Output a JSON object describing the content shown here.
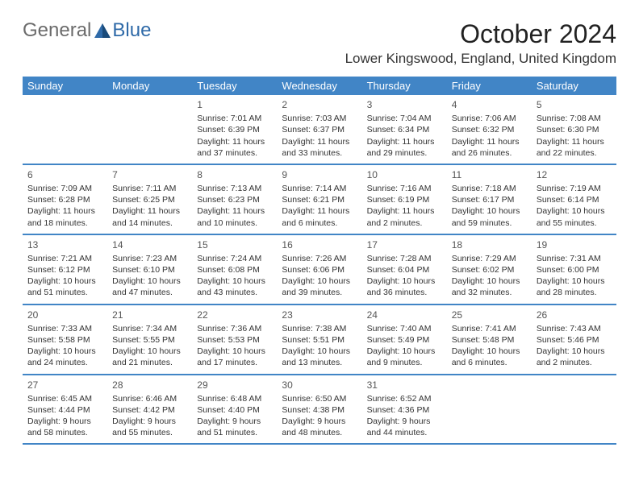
{
  "logo": {
    "text1": "General",
    "text2": "Blue"
  },
  "title": "October 2024",
  "location": "Lower Kingswood, England, United Kingdom",
  "colors": {
    "header_bg": "#4185c6",
    "header_text": "#ffffff",
    "border": "#4185c6",
    "body_text": "#333333",
    "logo_gray": "#6b6b6b",
    "logo_blue": "#2f6aa8"
  },
  "day_names": [
    "Sunday",
    "Monday",
    "Tuesday",
    "Wednesday",
    "Thursday",
    "Friday",
    "Saturday"
  ],
  "weeks": [
    [
      null,
      null,
      {
        "n": "1",
        "sr": "Sunrise: 7:01 AM",
        "ss": "Sunset: 6:39 PM",
        "dl": "Daylight: 11 hours and 37 minutes."
      },
      {
        "n": "2",
        "sr": "Sunrise: 7:03 AM",
        "ss": "Sunset: 6:37 PM",
        "dl": "Daylight: 11 hours and 33 minutes."
      },
      {
        "n": "3",
        "sr": "Sunrise: 7:04 AM",
        "ss": "Sunset: 6:34 PM",
        "dl": "Daylight: 11 hours and 29 minutes."
      },
      {
        "n": "4",
        "sr": "Sunrise: 7:06 AM",
        "ss": "Sunset: 6:32 PM",
        "dl": "Daylight: 11 hours and 26 minutes."
      },
      {
        "n": "5",
        "sr": "Sunrise: 7:08 AM",
        "ss": "Sunset: 6:30 PM",
        "dl": "Daylight: 11 hours and 22 minutes."
      }
    ],
    [
      {
        "n": "6",
        "sr": "Sunrise: 7:09 AM",
        "ss": "Sunset: 6:28 PM",
        "dl": "Daylight: 11 hours and 18 minutes."
      },
      {
        "n": "7",
        "sr": "Sunrise: 7:11 AM",
        "ss": "Sunset: 6:25 PM",
        "dl": "Daylight: 11 hours and 14 minutes."
      },
      {
        "n": "8",
        "sr": "Sunrise: 7:13 AM",
        "ss": "Sunset: 6:23 PM",
        "dl": "Daylight: 11 hours and 10 minutes."
      },
      {
        "n": "9",
        "sr": "Sunrise: 7:14 AM",
        "ss": "Sunset: 6:21 PM",
        "dl": "Daylight: 11 hours and 6 minutes."
      },
      {
        "n": "10",
        "sr": "Sunrise: 7:16 AM",
        "ss": "Sunset: 6:19 PM",
        "dl": "Daylight: 11 hours and 2 minutes."
      },
      {
        "n": "11",
        "sr": "Sunrise: 7:18 AM",
        "ss": "Sunset: 6:17 PM",
        "dl": "Daylight: 10 hours and 59 minutes."
      },
      {
        "n": "12",
        "sr": "Sunrise: 7:19 AM",
        "ss": "Sunset: 6:14 PM",
        "dl": "Daylight: 10 hours and 55 minutes."
      }
    ],
    [
      {
        "n": "13",
        "sr": "Sunrise: 7:21 AM",
        "ss": "Sunset: 6:12 PM",
        "dl": "Daylight: 10 hours and 51 minutes."
      },
      {
        "n": "14",
        "sr": "Sunrise: 7:23 AM",
        "ss": "Sunset: 6:10 PM",
        "dl": "Daylight: 10 hours and 47 minutes."
      },
      {
        "n": "15",
        "sr": "Sunrise: 7:24 AM",
        "ss": "Sunset: 6:08 PM",
        "dl": "Daylight: 10 hours and 43 minutes."
      },
      {
        "n": "16",
        "sr": "Sunrise: 7:26 AM",
        "ss": "Sunset: 6:06 PM",
        "dl": "Daylight: 10 hours and 39 minutes."
      },
      {
        "n": "17",
        "sr": "Sunrise: 7:28 AM",
        "ss": "Sunset: 6:04 PM",
        "dl": "Daylight: 10 hours and 36 minutes."
      },
      {
        "n": "18",
        "sr": "Sunrise: 7:29 AM",
        "ss": "Sunset: 6:02 PM",
        "dl": "Daylight: 10 hours and 32 minutes."
      },
      {
        "n": "19",
        "sr": "Sunrise: 7:31 AM",
        "ss": "Sunset: 6:00 PM",
        "dl": "Daylight: 10 hours and 28 minutes."
      }
    ],
    [
      {
        "n": "20",
        "sr": "Sunrise: 7:33 AM",
        "ss": "Sunset: 5:58 PM",
        "dl": "Daylight: 10 hours and 24 minutes."
      },
      {
        "n": "21",
        "sr": "Sunrise: 7:34 AM",
        "ss": "Sunset: 5:55 PM",
        "dl": "Daylight: 10 hours and 21 minutes."
      },
      {
        "n": "22",
        "sr": "Sunrise: 7:36 AM",
        "ss": "Sunset: 5:53 PM",
        "dl": "Daylight: 10 hours and 17 minutes."
      },
      {
        "n": "23",
        "sr": "Sunrise: 7:38 AM",
        "ss": "Sunset: 5:51 PM",
        "dl": "Daylight: 10 hours and 13 minutes."
      },
      {
        "n": "24",
        "sr": "Sunrise: 7:40 AM",
        "ss": "Sunset: 5:49 PM",
        "dl": "Daylight: 10 hours and 9 minutes."
      },
      {
        "n": "25",
        "sr": "Sunrise: 7:41 AM",
        "ss": "Sunset: 5:48 PM",
        "dl": "Daylight: 10 hours and 6 minutes."
      },
      {
        "n": "26",
        "sr": "Sunrise: 7:43 AM",
        "ss": "Sunset: 5:46 PM",
        "dl": "Daylight: 10 hours and 2 minutes."
      }
    ],
    [
      {
        "n": "27",
        "sr": "Sunrise: 6:45 AM",
        "ss": "Sunset: 4:44 PM",
        "dl": "Daylight: 9 hours and 58 minutes."
      },
      {
        "n": "28",
        "sr": "Sunrise: 6:46 AM",
        "ss": "Sunset: 4:42 PM",
        "dl": "Daylight: 9 hours and 55 minutes."
      },
      {
        "n": "29",
        "sr": "Sunrise: 6:48 AM",
        "ss": "Sunset: 4:40 PM",
        "dl": "Daylight: 9 hours and 51 minutes."
      },
      {
        "n": "30",
        "sr": "Sunrise: 6:50 AM",
        "ss": "Sunset: 4:38 PM",
        "dl": "Daylight: 9 hours and 48 minutes."
      },
      {
        "n": "31",
        "sr": "Sunrise: 6:52 AM",
        "ss": "Sunset: 4:36 PM",
        "dl": "Daylight: 9 hours and 44 minutes."
      },
      null,
      null
    ]
  ]
}
